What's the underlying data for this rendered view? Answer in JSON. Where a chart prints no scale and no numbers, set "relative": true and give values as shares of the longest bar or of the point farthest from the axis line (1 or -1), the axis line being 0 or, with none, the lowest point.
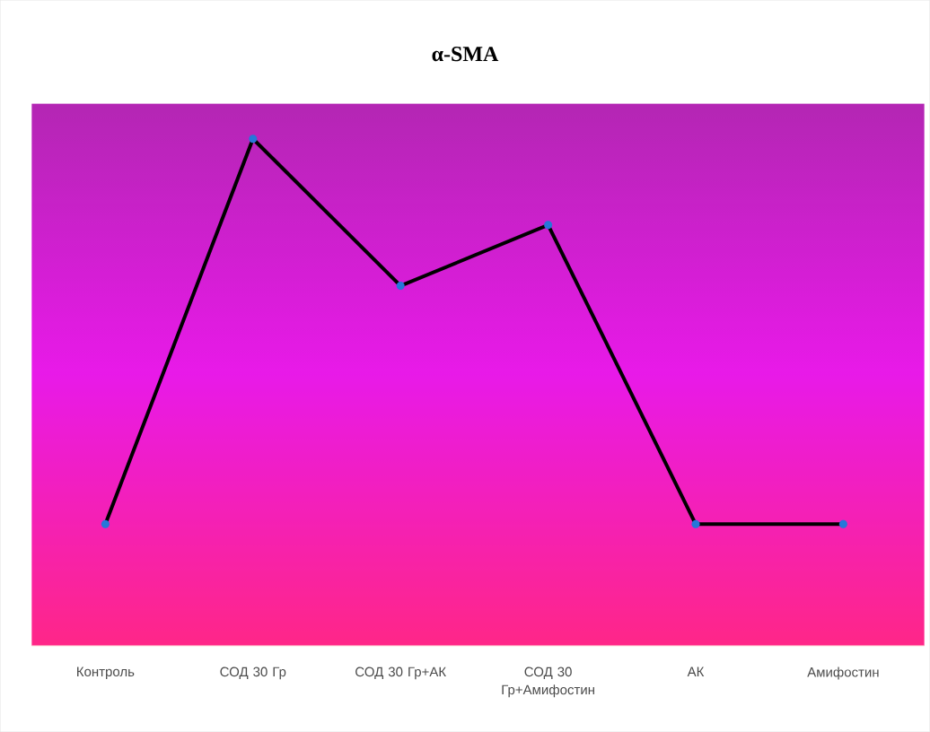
{
  "chart_data": {
    "type": "line",
    "title": "α-SMA",
    "relative": true,
    "categories": [
      "Контроль",
      "СОД 30 Гр",
      "СОД 30 Гр+АК",
      "СОД 30 Гр+Амифостин",
      "АК",
      "Амифостин"
    ],
    "series": [
      {
        "color": "#000000",
        "values": [
          0.24,
          1,
          0.71,
          0.83,
          0.24,
          0.24
        ]
      }
    ],
    "marker": "circle",
    "line_style": "solid"
  }
}
